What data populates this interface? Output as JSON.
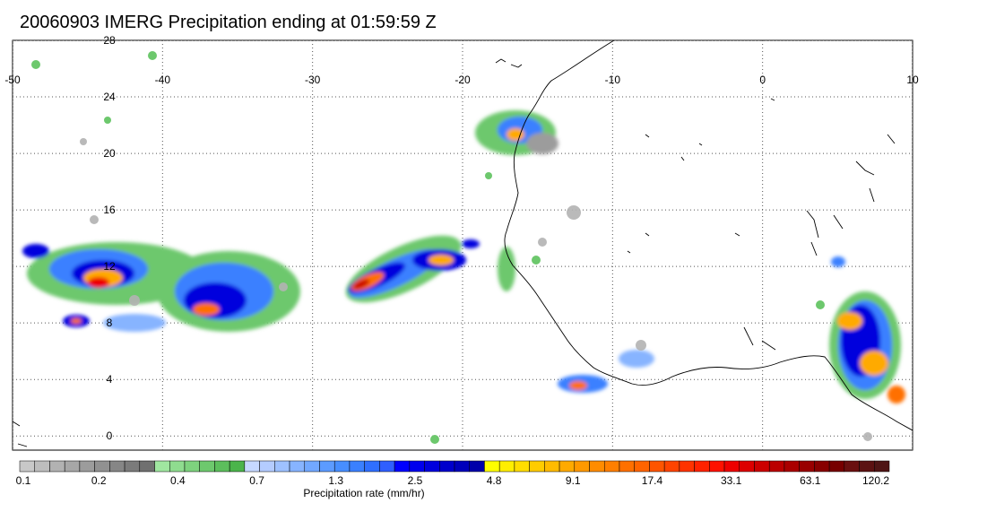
{
  "title": "20060903 IMERG Precipitation ending at 01:59:59 Z",
  "map": {
    "lon_range": [
      -50,
      10
    ],
    "lat_range": [
      -1,
      28
    ],
    "lon_ticks": [
      "-50",
      "-40",
      "-30",
      "-20",
      "-10",
      "0",
      "10"
    ],
    "lat_ticks": [
      "28",
      "24",
      "20",
      "16",
      "12",
      "8",
      "4",
      "0"
    ],
    "gridlines": true,
    "grid_style": "dotted"
  },
  "colorbar": {
    "title": "Precipitation rate (mm/hr)",
    "tick_labels": [
      "0.1",
      "0.2",
      "0.4",
      "0.7",
      "1.3",
      "2.5",
      "4.8",
      "9.1",
      "17.4",
      "33.1",
      "63.1",
      "120.2"
    ],
    "colors": [
      "#c8c8c8",
      "#bdbdbd",
      "#b2b2b2",
      "#a7a7a7",
      "#9c9c9c",
      "#919191",
      "#868686",
      "#7b7b7b",
      "#707070",
      "#a0e6a0",
      "#8fdc8f",
      "#7ed27e",
      "#6dc86d",
      "#5cbe5c",
      "#4bb44b",
      "#c6d8ff",
      "#b4ccff",
      "#9ec1ff",
      "#87b4ff",
      "#72a8ff",
      "#5c9bff",
      "#478eff",
      "#3a80ff",
      "#2f6fff",
      "#2f5fff",
      "#0000ff",
      "#0000ee",
      "#0000dd",
      "#0000cc",
      "#0000bb",
      "#0000aa",
      "#ffff00",
      "#ffee00",
      "#ffdd00",
      "#ffcc00",
      "#ffbb00",
      "#ffaa00",
      "#ff9900",
      "#ff8c00",
      "#ff7f00",
      "#ff7000",
      "#ff6400",
      "#ff5500",
      "#ff4400",
      "#ff3300",
      "#ff2200",
      "#ff1100",
      "#ee0000",
      "#dd0000",
      "#cc0000",
      "#bb0000",
      "#aa0000",
      "#990000",
      "#880000",
      "#770000",
      "#6a1010",
      "#5c1212",
      "#4f1515"
    ]
  }
}
